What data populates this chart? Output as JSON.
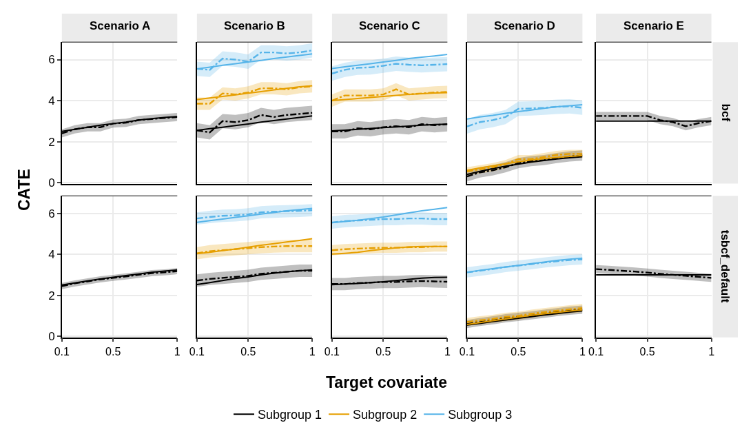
{
  "chart_data": [
    {
      "type": "line",
      "title": "Scenario A",
      "ylabel": "CATE",
      "tick_labels": "y",
      "x": [
        0.1,
        0.2,
        0.3,
        0.4,
        0.5,
        0.6,
        0.7,
        0.8,
        0.9,
        1.0
      ],
      "xlim": [
        0.1,
        1
      ],
      "xticks": [
        0.1,
        0.5,
        1
      ],
      "ylim": [
        -0.05,
        6.85
      ],
      "yticks": [
        0,
        2,
        4,
        6
      ],
      "grid": true,
      "series": [
        {
          "color": "#000000",
          "line_style": "dashed",
          "values": [
            2.4,
            2.6,
            2.7,
            2.7,
            2.88,
            2.92,
            3.05,
            3.1,
            3.15,
            3.2
          ],
          "lower": [
            2.2,
            2.4,
            2.5,
            2.5,
            2.68,
            2.72,
            2.85,
            2.9,
            2.95,
            3.0
          ],
          "upper": [
            2.6,
            2.8,
            2.9,
            2.9,
            3.08,
            3.12,
            3.25,
            3.3,
            3.35,
            3.4
          ]
        },
        {
          "color": "#000000",
          "line_style": "solid",
          "values": [
            2.5,
            2.6,
            2.7,
            2.8,
            2.88,
            2.95,
            3.05,
            3.12,
            3.18,
            3.22
          ]
        }
      ]
    },
    {
      "type": "line",
      "title": "Scenario B",
      "legend": "bottom",
      "tick_labels": false,
      "x": [
        0.1,
        0.2,
        0.3,
        0.4,
        0.5,
        0.6,
        0.7,
        0.8,
        0.9,
        1.0
      ],
      "xlim": [
        0.1,
        1
      ],
      "xticks": [
        0.1,
        0.5,
        1
      ],
      "ylim": [
        -0.05,
        6.85
      ],
      "yticks": [
        0,
        2,
        4,
        6
      ],
      "grid": true,
      "series": [
        {
          "color": "#000000",
          "line_style": "dashed",
          "values": [
            2.55,
            2.45,
            3.0,
            2.95,
            3.05,
            3.3,
            3.2,
            3.3,
            3.35,
            3.4
          ],
          "lower": [
            2.2,
            2.1,
            2.65,
            2.6,
            2.7,
            2.95,
            2.85,
            2.95,
            3.0,
            3.05
          ],
          "upper": [
            2.9,
            2.8,
            3.35,
            3.3,
            3.4,
            3.65,
            3.55,
            3.65,
            3.7,
            3.75
          ]
        },
        {
          "name": "Subgroup 1",
          "color": "#000000",
          "line_style": "solid",
          "values": [
            2.55,
            2.63,
            2.7,
            2.78,
            2.86,
            2.95,
            3.03,
            3.1,
            3.18,
            3.25
          ]
        },
        {
          "color": "#e69f00",
          "line_style": "dashed",
          "values": [
            3.85,
            3.85,
            4.35,
            4.3,
            4.4,
            4.6,
            4.6,
            4.55,
            4.65,
            4.7
          ],
          "lower": [
            3.55,
            3.55,
            4.05,
            4.0,
            4.1,
            4.3,
            4.3,
            4.25,
            4.35,
            4.4
          ],
          "upper": [
            4.15,
            4.15,
            4.65,
            4.6,
            4.7,
            4.9,
            4.9,
            4.85,
            4.95,
            5.0
          ]
        },
        {
          "name": "Subgroup 2",
          "color": "#e69f00",
          "line_style": "solid",
          "values": [
            4.05,
            4.13,
            4.2,
            4.28,
            4.36,
            4.44,
            4.52,
            4.6,
            4.67,
            4.72
          ]
        },
        {
          "color": "#56b4e9",
          "line_style": "dashed",
          "values": [
            5.55,
            5.5,
            6.05,
            6.0,
            5.9,
            6.35,
            6.35,
            6.3,
            6.35,
            6.45
          ],
          "lower": [
            5.2,
            5.15,
            5.7,
            5.65,
            5.55,
            6.0,
            6.0,
            5.95,
            6.0,
            6.1
          ],
          "upper": [
            5.9,
            5.85,
            6.4,
            6.35,
            6.25,
            6.7,
            6.7,
            6.65,
            6.7,
            6.8
          ]
        },
        {
          "name": "Subgroup 3",
          "color": "#56b4e9",
          "line_style": "solid",
          "values": [
            5.55,
            5.63,
            5.72,
            5.8,
            5.88,
            5.96,
            6.05,
            6.13,
            6.2,
            6.28
          ]
        }
      ]
    },
    {
      "type": "line",
      "title": "Scenario C",
      "tick_labels": false,
      "x": [
        0.1,
        0.2,
        0.3,
        0.4,
        0.5,
        0.6,
        0.7,
        0.8,
        0.9,
        1.0
      ],
      "xlim": [
        0.1,
        1
      ],
      "xticks": [
        0.1,
        0.5,
        1
      ],
      "ylim": [
        -0.05,
        6.85
      ],
      "yticks": [
        0,
        2,
        4,
        6
      ],
      "grid": true,
      "series": [
        {
          "color": "#000000",
          "line_style": "dashed",
          "values": [
            2.5,
            2.5,
            2.65,
            2.6,
            2.7,
            2.75,
            2.7,
            2.85,
            2.8,
            2.85
          ],
          "lower": [
            2.15,
            2.15,
            2.3,
            2.25,
            2.35,
            2.4,
            2.35,
            2.5,
            2.45,
            2.5
          ],
          "upper": [
            2.85,
            2.85,
            3.0,
            2.95,
            3.05,
            3.1,
            3.05,
            3.2,
            3.15,
            3.2
          ]
        },
        {
          "color": "#000000",
          "line_style": "solid",
          "values": [
            2.52,
            2.56,
            2.6,
            2.64,
            2.68,
            2.72,
            2.76,
            2.8,
            2.83,
            2.85
          ]
        },
        {
          "color": "#e69f00",
          "line_style": "dashed",
          "values": [
            4.0,
            4.25,
            4.25,
            4.25,
            4.3,
            4.55,
            4.3,
            4.35,
            4.4,
            4.42
          ],
          "lower": [
            3.7,
            3.95,
            3.95,
            3.95,
            4.0,
            4.25,
            4.0,
            4.05,
            4.1,
            4.12
          ],
          "upper": [
            4.3,
            4.55,
            4.55,
            4.55,
            4.6,
            4.85,
            4.6,
            4.65,
            4.7,
            4.72
          ]
        },
        {
          "color": "#e69f00",
          "line_style": "solid",
          "values": [
            4.0,
            4.05,
            4.1,
            4.15,
            4.2,
            4.25,
            4.3,
            4.34,
            4.37,
            4.39
          ]
        },
        {
          "color": "#56b4e9",
          "line_style": "dashed",
          "values": [
            5.32,
            5.5,
            5.6,
            5.62,
            5.7,
            5.8,
            5.75,
            5.72,
            5.75,
            5.78
          ],
          "lower": [
            4.97,
            5.15,
            5.25,
            5.27,
            5.35,
            5.45,
            5.4,
            5.37,
            5.4,
            5.43
          ],
          "upper": [
            5.67,
            5.85,
            5.95,
            5.97,
            6.05,
            6.15,
            6.1,
            6.07,
            6.1,
            6.13
          ]
        },
        {
          "color": "#56b4e9",
          "line_style": "solid",
          "values": [
            5.56,
            5.65,
            5.72,
            5.8,
            5.88,
            5.96,
            6.05,
            6.12,
            6.18,
            6.25
          ]
        }
      ]
    },
    {
      "type": "line",
      "title": "Scenario D",
      "tick_labels": false,
      "x": [
        0.1,
        0.2,
        0.3,
        0.4,
        0.5,
        0.6,
        0.7,
        0.8,
        0.9,
        1.0
      ],
      "xlim": [
        0.1,
        1
      ],
      "xticks": [
        0.1,
        0.5,
        1
      ],
      "ylim": [
        -0.05,
        6.85
      ],
      "yticks": [
        0,
        2,
        4,
        6
      ],
      "grid": true,
      "series": [
        {
          "color": "#000000",
          "line_style": "dashed",
          "values": [
            0.3,
            0.5,
            0.6,
            0.75,
            0.95,
            1.05,
            1.1,
            1.2,
            1.28,
            1.32
          ],
          "lower": [
            0.05,
            0.25,
            0.35,
            0.5,
            0.7,
            0.8,
            0.85,
            0.95,
            1.03,
            1.07
          ],
          "upper": [
            0.55,
            0.75,
            0.85,
            1.0,
            1.2,
            1.3,
            1.35,
            1.45,
            1.53,
            1.57
          ]
        },
        {
          "color": "#000000",
          "line_style": "solid",
          "values": [
            0.4,
            0.55,
            0.68,
            0.8,
            0.9,
            1.0,
            1.08,
            1.15,
            1.21,
            1.26
          ]
        },
        {
          "color": "#e69f00",
          "line_style": "dashed",
          "values": [
            0.55,
            0.65,
            0.75,
            0.9,
            1.15,
            1.15,
            1.25,
            1.35,
            1.4,
            1.4
          ],
          "lower": [
            0.35,
            0.45,
            0.55,
            0.7,
            0.95,
            0.95,
            1.05,
            1.15,
            1.2,
            1.2
          ],
          "upper": [
            0.75,
            0.85,
            0.95,
            1.1,
            1.35,
            1.35,
            1.45,
            1.55,
            1.6,
            1.6
          ]
        },
        {
          "color": "#e69f00",
          "line_style": "solid",
          "values": [
            0.6,
            0.72,
            0.82,
            0.92,
            1.02,
            1.1,
            1.17,
            1.23,
            1.28,
            1.32
          ]
        },
        {
          "color": "#56b4e9",
          "line_style": "dashed",
          "values": [
            2.74,
            2.95,
            3.05,
            3.2,
            3.6,
            3.62,
            3.65,
            3.7,
            3.72,
            3.65
          ],
          "lower": [
            2.39,
            2.6,
            2.7,
            2.85,
            3.25,
            3.27,
            3.3,
            3.35,
            3.37,
            3.3
          ],
          "upper": [
            3.09,
            3.3,
            3.4,
            3.55,
            3.95,
            3.97,
            4.0,
            4.05,
            4.07,
            4.0
          ]
        },
        {
          "color": "#56b4e9",
          "line_style": "solid",
          "values": [
            3.1,
            3.2,
            3.28,
            3.38,
            3.46,
            3.54,
            3.62,
            3.7,
            3.75,
            3.8
          ]
        }
      ]
    },
    {
      "type": "line",
      "title": "Scenario E",
      "y2label": "bcf",
      "tick_labels": false,
      "x": [
        0.1,
        0.2,
        0.3,
        0.4,
        0.5,
        0.6,
        0.7,
        0.8,
        0.9,
        1.0
      ],
      "xlim": [
        0.1,
        1
      ],
      "xticks": [
        0.1,
        0.5,
        1
      ],
      "ylim": [
        -0.05,
        6.85
      ],
      "yticks": [
        0,
        2,
        4,
        6
      ],
      "grid": true,
      "series": [
        {
          "color": "#000000",
          "line_style": "dashed",
          "values": [
            3.25,
            3.25,
            3.25,
            3.25,
            3.25,
            3.05,
            2.95,
            2.75,
            2.9,
            3.0
          ],
          "lower": [
            3.05,
            3.05,
            3.05,
            3.05,
            3.05,
            2.85,
            2.75,
            2.55,
            2.7,
            2.8
          ],
          "upper": [
            3.45,
            3.45,
            3.45,
            3.45,
            3.45,
            3.25,
            3.15,
            2.95,
            3.1,
            3.2
          ]
        },
        {
          "color": "#000000",
          "line_style": "solid",
          "values": [
            3.0,
            3.0,
            3.0,
            3.0,
            3.0,
            3.0,
            3.0,
            3.0,
            3.0,
            3.0
          ]
        }
      ]
    },
    {
      "type": "line",
      "x": [
        0.1,
        0.2,
        0.3,
        0.4,
        0.5,
        0.6,
        0.7,
        0.8,
        0.9,
        1.0
      ],
      "xlim": [
        0.1,
        1
      ],
      "xticks": [
        0.1,
        0.5,
        1
      ],
      "ylim": [
        -0.05,
        6.85
      ],
      "yticks": [
        0,
        2,
        4,
        6
      ],
      "grid": true,
      "series": [
        {
          "color": "#000000",
          "line_style": "dashed",
          "values": [
            2.45,
            2.58,
            2.68,
            2.78,
            2.85,
            2.92,
            3.0,
            3.08,
            3.12,
            3.18
          ],
          "lower": [
            2.3,
            2.43,
            2.53,
            2.63,
            2.7,
            2.77,
            2.85,
            2.93,
            2.97,
            3.03
          ],
          "upper": [
            2.6,
            2.73,
            2.83,
            2.93,
            3.0,
            3.07,
            3.15,
            3.23,
            3.27,
            3.33
          ]
        },
        {
          "color": "#000000",
          "line_style": "solid",
          "values": [
            2.5,
            2.6,
            2.7,
            2.8,
            2.88,
            2.96,
            3.04,
            3.12,
            3.18,
            3.24
          ]
        }
      ]
    },
    {
      "type": "line",
      "tick_labels": "x",
      "x": [
        0.1,
        0.2,
        0.3,
        0.4,
        0.5,
        0.6,
        0.7,
        0.8,
        0.9,
        1.0
      ],
      "xlim": [
        0.1,
        1
      ],
      "xticks": [
        0.1,
        0.5,
        1
      ],
      "ylim": [
        -0.05,
        6.85
      ],
      "yticks": [
        0,
        2,
        4,
        6
      ],
      "grid": true,
      "series": [
        {
          "color": "#000000",
          "line_style": "dashed",
          "values": [
            2.72,
            2.8,
            2.85,
            2.9,
            2.95,
            3.05,
            3.1,
            3.15,
            3.2,
            3.2
          ],
          "lower": [
            2.42,
            2.5,
            2.55,
            2.6,
            2.65,
            2.75,
            2.8,
            2.85,
            2.9,
            2.9
          ],
          "upper": [
            3.02,
            3.1,
            3.15,
            3.2,
            3.25,
            3.35,
            3.4,
            3.45,
            3.5,
            3.5
          ]
        },
        {
          "color": "#000000",
          "line_style": "solid",
          "values": [
            2.53,
            2.62,
            2.72,
            2.82,
            2.9,
            3.0,
            3.08,
            3.15,
            3.2,
            3.24
          ]
        },
        {
          "color": "#e69f00",
          "line_style": "dashed",
          "values": [
            4.05,
            4.15,
            4.2,
            4.25,
            4.3,
            4.35,
            4.38,
            4.4,
            4.4,
            4.4
          ],
          "lower": [
            3.75,
            3.85,
            3.9,
            3.95,
            4.0,
            4.05,
            4.08,
            4.1,
            4.1,
            4.1
          ],
          "upper": [
            4.35,
            4.45,
            4.5,
            4.55,
            4.6,
            4.65,
            4.68,
            4.7,
            4.7,
            4.7
          ]
        },
        {
          "color": "#e69f00",
          "line_style": "solid",
          "values": [
            4.03,
            4.1,
            4.18,
            4.26,
            4.35,
            4.44,
            4.52,
            4.6,
            4.68,
            4.76
          ]
        },
        {
          "color": "#56b4e9",
          "line_style": "dashed",
          "values": [
            5.75,
            5.82,
            5.88,
            5.9,
            5.95,
            6.05,
            6.08,
            6.1,
            6.12,
            6.15
          ],
          "lower": [
            5.45,
            5.52,
            5.58,
            5.6,
            5.65,
            5.75,
            5.78,
            5.8,
            5.82,
            5.85
          ],
          "upper": [
            6.05,
            6.12,
            6.18,
            6.2,
            6.25,
            6.35,
            6.38,
            6.4,
            6.42,
            6.45
          ]
        },
        {
          "color": "#56b4e9",
          "line_style": "solid",
          "values": [
            5.56,
            5.64,
            5.72,
            5.8,
            5.88,
            5.96,
            6.04,
            6.12,
            6.18,
            6.24
          ]
        }
      ]
    },
    {
      "type": "line",
      "xlabel": "Target covariate",
      "tick_labels": "x",
      "x": [
        0.1,
        0.2,
        0.3,
        0.4,
        0.5,
        0.6,
        0.7,
        0.8,
        0.9,
        1.0
      ],
      "xlim": [
        0.1,
        1
      ],
      "xticks": [
        0.1,
        0.5,
        1
      ],
      "ylim": [
        -0.05,
        6.85
      ],
      "yticks": [
        0,
        2,
        4,
        6
      ],
      "grid": true,
      "series": [
        {
          "color": "#000000",
          "line_style": "dashed",
          "values": [
            2.55,
            2.55,
            2.6,
            2.62,
            2.65,
            2.65,
            2.68,
            2.7,
            2.68,
            2.66
          ],
          "lower": [
            2.25,
            2.25,
            2.3,
            2.32,
            2.35,
            2.35,
            2.38,
            2.4,
            2.38,
            2.36
          ],
          "upper": [
            2.85,
            2.85,
            2.9,
            2.92,
            2.95,
            2.95,
            2.98,
            3.0,
            2.98,
            2.96
          ]
        },
        {
          "color": "#000000",
          "line_style": "solid",
          "values": [
            2.52,
            2.55,
            2.58,
            2.62,
            2.66,
            2.72,
            2.78,
            2.84,
            2.87,
            2.88
          ]
        },
        {
          "color": "#e69f00",
          "line_style": "dashed",
          "values": [
            4.2,
            4.25,
            4.28,
            4.3,
            4.32,
            4.32,
            4.35,
            4.35,
            4.38,
            4.38
          ],
          "lower": [
            3.95,
            4.0,
            4.03,
            4.05,
            4.07,
            4.07,
            4.1,
            4.1,
            4.13,
            4.13
          ],
          "upper": [
            4.45,
            4.5,
            4.53,
            4.55,
            4.57,
            4.57,
            4.6,
            4.6,
            4.63,
            4.63
          ]
        },
        {
          "color": "#e69f00",
          "line_style": "solid",
          "values": [
            4.01,
            4.05,
            4.1,
            4.18,
            4.25,
            4.32,
            4.36,
            4.38,
            4.38,
            4.38
          ]
        },
        {
          "color": "#56b4e9",
          "line_style": "dashed",
          "values": [
            5.55,
            5.62,
            5.65,
            5.68,
            5.72,
            5.72,
            5.75,
            5.75,
            5.72,
            5.72
          ],
          "lower": [
            5.25,
            5.32,
            5.35,
            5.38,
            5.42,
            5.42,
            5.45,
            5.45,
            5.42,
            5.42
          ],
          "upper": [
            5.85,
            5.92,
            5.95,
            5.98,
            6.02,
            6.02,
            6.05,
            6.05,
            6.02,
            6.02
          ]
        },
        {
          "color": "#56b4e9",
          "line_style": "solid",
          "values": [
            5.54,
            5.6,
            5.66,
            5.74,
            5.82,
            5.92,
            6.02,
            6.12,
            6.2,
            6.28
          ]
        }
      ]
    },
    {
      "type": "line",
      "tick_labels": "x",
      "x": [
        0.1,
        0.2,
        0.3,
        0.4,
        0.5,
        0.6,
        0.7,
        0.8,
        0.9,
        1.0
      ],
      "xlim": [
        0.1,
        1
      ],
      "xticks": [
        0.1,
        0.5,
        1
      ],
      "ylim": [
        -0.05,
        6.85
      ],
      "yticks": [
        0,
        2,
        4,
        6
      ],
      "grid": true,
      "series": [
        {
          "color": "#000000",
          "line_style": "dashed",
          "values": [
            0.6,
            0.7,
            0.78,
            0.88,
            0.95,
            1.02,
            1.1,
            1.18,
            1.25,
            1.3
          ],
          "lower": [
            0.4,
            0.5,
            0.58,
            0.68,
            0.75,
            0.82,
            0.9,
            0.98,
            1.05,
            1.1
          ],
          "upper": [
            0.8,
            0.9,
            0.98,
            1.08,
            1.15,
            1.22,
            1.3,
            1.38,
            1.45,
            1.5
          ]
        },
        {
          "color": "#000000",
          "line_style": "solid",
          "values": [
            0.55,
            0.63,
            0.72,
            0.8,
            0.88,
            0.96,
            1.04,
            1.11,
            1.18,
            1.24
          ]
        },
        {
          "color": "#e69f00",
          "line_style": "dashed",
          "values": [
            0.7,
            0.78,
            0.85,
            0.95,
            1.0,
            1.1,
            1.18,
            1.25,
            1.32,
            1.38
          ],
          "lower": [
            0.5,
            0.58,
            0.65,
            0.75,
            0.8,
            0.9,
            0.98,
            1.05,
            1.12,
            1.18
          ],
          "upper": [
            0.9,
            0.98,
            1.05,
            1.15,
            1.2,
            1.3,
            1.38,
            1.45,
            1.52,
            1.58
          ]
        },
        {
          "color": "#e69f00",
          "line_style": "solid",
          "values": [
            0.58,
            0.67,
            0.76,
            0.85,
            0.94,
            1.02,
            1.1,
            1.17,
            1.23,
            1.29
          ]
        },
        {
          "color": "#56b4e9",
          "line_style": "dashed",
          "values": [
            3.12,
            3.2,
            3.28,
            3.38,
            3.45,
            3.52,
            3.6,
            3.66,
            3.72,
            3.75
          ],
          "lower": [
            2.87,
            2.95,
            3.03,
            3.13,
            3.2,
            3.27,
            3.35,
            3.41,
            3.47,
            3.5
          ],
          "upper": [
            3.37,
            3.45,
            3.53,
            3.63,
            3.7,
            3.77,
            3.85,
            3.91,
            3.97,
            4.0
          ]
        },
        {
          "color": "#56b4e9",
          "line_style": "solid",
          "values": [
            3.12,
            3.22,
            3.3,
            3.38,
            3.46,
            3.54,
            3.62,
            3.7,
            3.76,
            3.81
          ]
        }
      ]
    },
    {
      "type": "line",
      "y2label": "tsbcf_default",
      "tick_labels": "x",
      "x": [
        0.1,
        0.2,
        0.3,
        0.4,
        0.5,
        0.6,
        0.7,
        0.8,
        0.9,
        1.0
      ],
      "xlim": [
        0.1,
        1
      ],
      "xticks": [
        0.1,
        0.5,
        1
      ],
      "ylim": [
        -0.05,
        6.85
      ],
      "yticks": [
        0,
        2,
        4,
        6
      ],
      "grid": true,
      "series": [
        {
          "color": "#000000",
          "line_style": "dashed",
          "values": [
            3.28,
            3.24,
            3.2,
            3.16,
            3.11,
            3.05,
            3.0,
            2.95,
            2.9,
            2.85
          ],
          "lower": [
            3.08,
            3.04,
            3.0,
            2.96,
            2.91,
            2.85,
            2.8,
            2.75,
            2.7,
            2.65
          ],
          "upper": [
            3.48,
            3.44,
            3.4,
            3.36,
            3.31,
            3.25,
            3.2,
            3.15,
            3.1,
            3.05
          ]
        },
        {
          "color": "#000000",
          "line_style": "solid",
          "values": [
            3.0,
            3.0,
            3.0,
            3.0,
            3.0,
            3.0,
            3.0,
            3.0,
            3.0,
            3.0
          ]
        }
      ]
    }
  ]
}
